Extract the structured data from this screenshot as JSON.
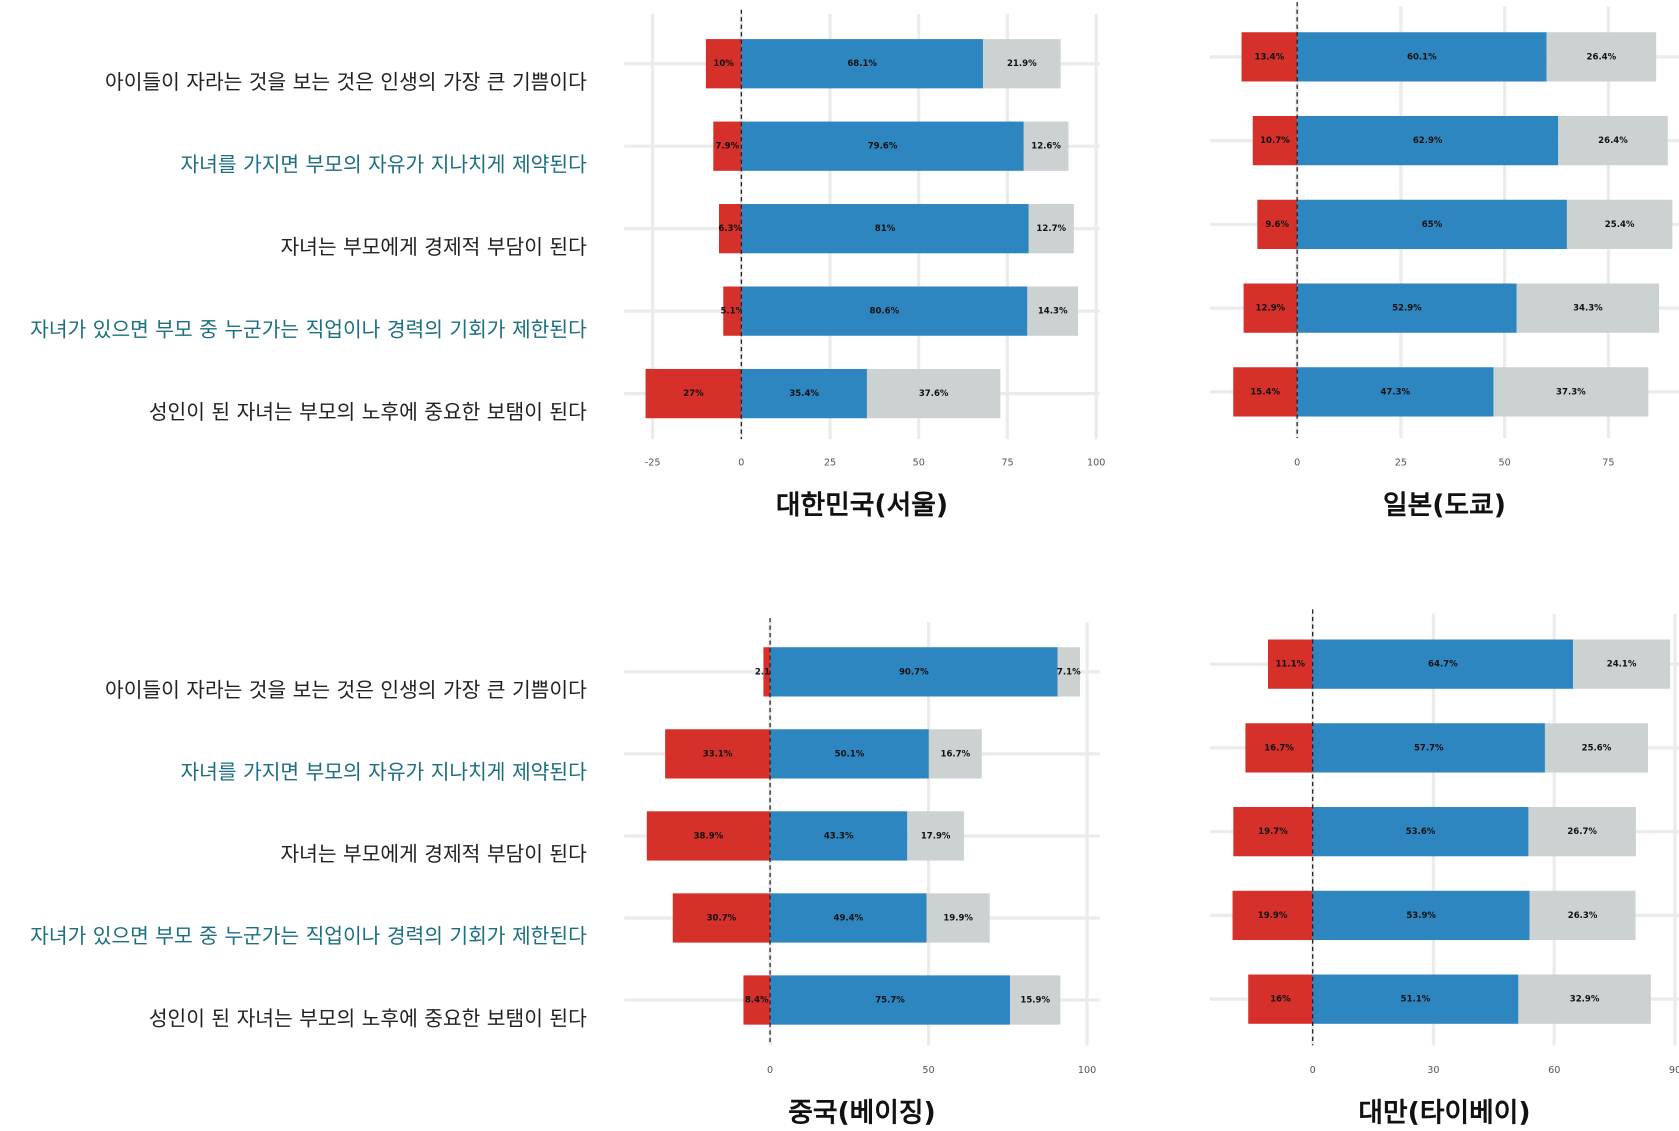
{
  "chart_data": [
    {
      "type": "diverging-bar",
      "title": "대한민국(서울)",
      "categories": [
        "아이들이 자라는 것을 보는 것은 인생의 가장 큰 기쁨이다",
        "자녀를 가지면 부모의 자유가 지나치게 제약된다",
        "자녀는 부모에게 경제적 부담이 된다",
        "자녀가 있으면 부모 중 누군가는 직업이나 경력의 기회가 제한된다",
        "성인이 된 자녀는 부모의 노후에 중요한 보탬이 된다"
      ],
      "series": [
        {
          "color": "#d6302a",
          "values": [
            10,
            7.9,
            6.3,
            5.1,
            27
          ],
          "value_labels": [
            "10%",
            "7.9%",
            "6.3%",
            "5.1%",
            "27%"
          ]
        },
        {
          "color": "#2e86c1",
          "values": [
            68.1,
            79.6,
            81,
            80.6,
            35.4
          ],
          "value_labels": [
            "68.1%",
            "79.6%",
            "81%",
            "80.6%",
            "35.4%"
          ]
        },
        {
          "color": "#ccd1d1",
          "values": [
            21.9,
            12.6,
            12.7,
            14.3,
            37.6
          ],
          "value_labels": [
            "21.9%",
            "12.6%",
            "12.7%",
            "14.3%",
            "37.6%"
          ]
        }
      ],
      "xlim": [
        -33,
        101
      ],
      "xticks": [
        -25,
        0,
        25,
        50,
        75,
        100
      ],
      "grid": true
    },
    {
      "type": "diverging-bar",
      "title": "일본(도쿄)",
      "series": [
        {
          "color": "#d6302a",
          "values": [
            13.4,
            10.7,
            9.6,
            12.9,
            15.4
          ],
          "value_labels": [
            "13.4%",
            "10.7%",
            "9.6%",
            "12.9%",
            "15.4%"
          ]
        },
        {
          "color": "#2e86c1",
          "values": [
            60.1,
            62.9,
            65,
            52.9,
            47.3
          ],
          "value_labels": [
            "60.1%",
            "62.9%",
            "65%",
            "52.9%",
            "47.3%"
          ]
        },
        {
          "color": "#ccd1d1",
          "values": [
            26.4,
            26.4,
            25.4,
            34.3,
            37.3
          ],
          "value_labels": [
            "26.4%",
            "26.4%",
            "25.4%",
            "34.3%",
            "37.3%"
          ]
        }
      ],
      "xlim": [
        -21,
        92
      ],
      "xticks": [
        0,
        25,
        50,
        75
      ],
      "grid": true
    },
    {
      "type": "diverging-bar",
      "title": "중국(베이징)",
      "categories": [
        "아이들이 자라는 것을 보는 것은 인생의 가장 큰 기쁨이다",
        "자녀를 가지면 부모의 자유가 지나치게 제약된다",
        "자녀는 부모에게 경제적 부담이 된다",
        "자녀가 있으면 부모 중 누군가는 직업이나 경력의 기회가 제한된다",
        "성인이 된 자녀는 부모의 노후에 중요한 보탬이 된다"
      ],
      "series": [
        {
          "color": "#d6302a",
          "values": [
            2.1,
            33.1,
            38.9,
            30.7,
            8.4
          ],
          "value_labels": [
            "2.1%",
            "33.1%",
            "38.9%",
            "30.7%",
            "8.4%"
          ]
        },
        {
          "color": "#2e86c1",
          "values": [
            90.7,
            50.1,
            43.3,
            49.4,
            75.7
          ],
          "value_labels": [
            "90.7%",
            "50.1%",
            "43.3%",
            "49.4%",
            "75.7%"
          ]
        },
        {
          "color": "#ccd1d1",
          "values": [
            7.1,
            16.7,
            17.9,
            19.9,
            15.9
          ],
          "value_labels": [
            "7.1%",
            "16.7%",
            "17.9%",
            "19.9%",
            "15.9%"
          ]
        }
      ],
      "xlim": [
        -46,
        104
      ],
      "xticks": [
        0,
        50,
        100
      ],
      "grid": true
    },
    {
      "type": "diverging-bar",
      "title": "대만(타이베이)",
      "series": [
        {
          "color": "#d6302a",
          "values": [
            11.1,
            16.7,
            19.7,
            19.9,
            16
          ],
          "value_labels": [
            "11.1%",
            "16.7%",
            "19.7%",
            "19.9%",
            "16%"
          ]
        },
        {
          "color": "#2e86c1",
          "values": [
            64.7,
            57.7,
            53.6,
            53.9,
            51.1
          ],
          "value_labels": [
            "64.7%",
            "57.7%",
            "53.6%",
            "53.9%",
            "51.1%"
          ]
        },
        {
          "color": "#ccd1d1",
          "values": [
            24.1,
            25.6,
            26.7,
            26.3,
            32.9
          ],
          "value_labels": [
            "24.1%",
            "25.6%",
            "26.7%",
            "26.3%",
            "32.9%"
          ]
        }
      ],
      "xlim": [
        -25.5,
        91
      ],
      "xticks": [
        0,
        30,
        60,
        90
      ],
      "grid": true
    }
  ]
}
